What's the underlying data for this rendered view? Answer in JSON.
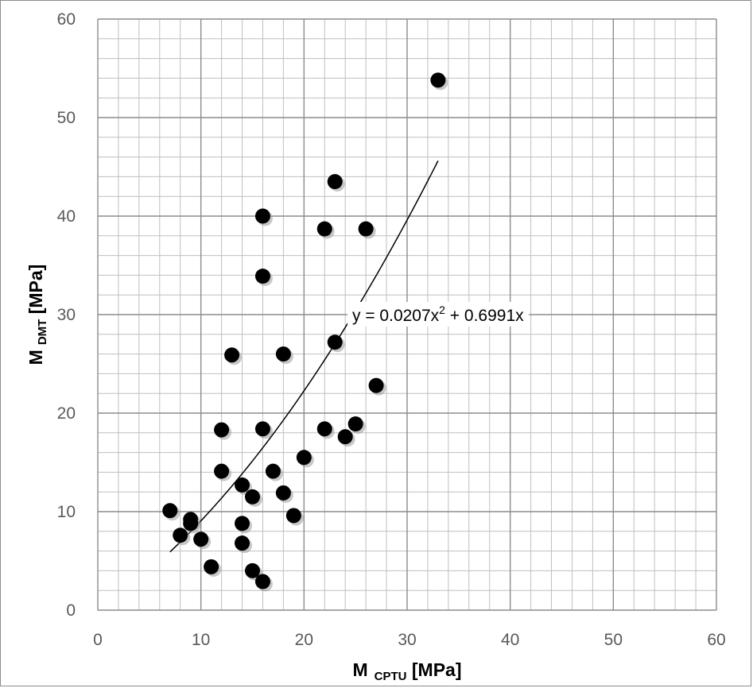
{
  "chart_data": {
    "type": "scatter",
    "title": "",
    "xlabel": {
      "main": "M",
      "sub": "CPTU",
      "unit": " [MPa]"
    },
    "ylabel": {
      "main": "M",
      "sub": "DMT",
      "unit": " [MPa]"
    },
    "xlim": [
      0,
      60
    ],
    "ylim": [
      0,
      60
    ],
    "xticks": [
      0,
      10,
      20,
      30,
      40,
      50,
      60
    ],
    "yticks": [
      0,
      10,
      20,
      30,
      40,
      50,
      60
    ],
    "grid": {
      "major": true,
      "minor": true,
      "minor_step": 2
    },
    "legend": "none",
    "colors": {
      "points": "#000000",
      "grid_major": "#8c8c8c",
      "grid_minor": "#bfbfbf",
      "trendline": "#000000"
    },
    "points": [
      {
        "x": 7,
        "y": 10.1
      },
      {
        "x": 8,
        "y": 7.6
      },
      {
        "x": 9,
        "y": 9.2
      },
      {
        "x": 9,
        "y": 8.8
      },
      {
        "x": 10,
        "y": 7.2
      },
      {
        "x": 11,
        "y": 4.4
      },
      {
        "x": 12,
        "y": 18.3
      },
      {
        "x": 12,
        "y": 14.1
      },
      {
        "x": 13,
        "y": 25.9
      },
      {
        "x": 14,
        "y": 12.7
      },
      {
        "x": 14,
        "y": 8.8
      },
      {
        "x": 14,
        "y": 6.8
      },
      {
        "x": 15,
        "y": 11.5
      },
      {
        "x": 15,
        "y": 4.0
      },
      {
        "x": 16,
        "y": 40.0
      },
      {
        "x": 16,
        "y": 33.9
      },
      {
        "x": 16,
        "y": 18.4
      },
      {
        "x": 16,
        "y": 2.9
      },
      {
        "x": 17,
        "y": 14.1
      },
      {
        "x": 18,
        "y": 26.0
      },
      {
        "x": 18,
        "y": 11.9
      },
      {
        "x": 19,
        "y": 9.6
      },
      {
        "x": 20,
        "y": 15.5
      },
      {
        "x": 22,
        "y": 38.7
      },
      {
        "x": 22,
        "y": 18.4
      },
      {
        "x": 23,
        "y": 43.5
      },
      {
        "x": 23,
        "y": 27.2
      },
      {
        "x": 24,
        "y": 17.6
      },
      {
        "x": 25,
        "y": 18.9
      },
      {
        "x": 26,
        "y": 38.7
      },
      {
        "x": 27,
        "y": 22.8
      },
      {
        "x": 33,
        "y": 53.8
      }
    ],
    "trendline": {
      "type": "polynomial",
      "coefficients": {
        "a2": 0.0207,
        "a1": 0.6991,
        "a0": 0
      },
      "x_range": [
        7,
        33
      ],
      "label": "y = 0.0207x",
      "label_exp": "2",
      "label_rest": " + 0.6991x"
    }
  }
}
